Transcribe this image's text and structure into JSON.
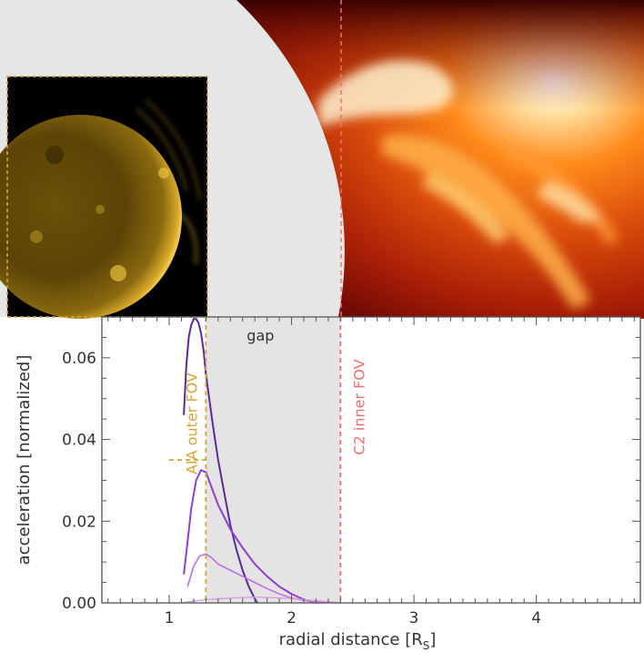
{
  "colors": {
    "gap_fill": "#e4e4e4",
    "aia_line": "#d8a535",
    "c2_line": "#f07070",
    "curve_dark": "#5a2a9a",
    "curve_mid": "#8f3fd0",
    "curve_light": "#c070e0",
    "curve_faint": "#d89ae8",
    "axis": "#555555"
  },
  "chart_data": {
    "type": "line",
    "xlabel": "radial distance [R",
    "xlabel_sub": "S",
    "xlabel_close": "]",
    "ylabel": "acceleration [normalized]",
    "xlim": [
      0.45,
      4.85
    ],
    "ylim": [
      0,
      0.07
    ],
    "xticks": [
      1,
      2,
      3,
      4
    ],
    "xtick_labels": [
      "1",
      "2",
      "3",
      "4"
    ],
    "yticks": [
      0,
      0.02,
      0.04,
      0.06
    ],
    "ytick_labels": [
      "0.00",
      "0.02",
      "0.04",
      "0.06"
    ],
    "gap": {
      "x0": 1.3,
      "x1": 2.4,
      "label": "gap"
    },
    "aia_outer_fov": {
      "x": 1.3,
      "label": "AIA outer FOV",
      "ref_y": 0.035,
      "ref_x0": 1.0
    },
    "c2_inner_fov": {
      "x": 2.4,
      "label": "C2 inner FOV"
    },
    "series": [
      {
        "x": [
          1.12,
          1.14,
          1.16,
          1.18,
          1.2,
          1.22,
          1.24,
          1.26,
          1.28,
          1.3,
          1.35,
          1.4,
          1.45,
          1.5,
          1.55,
          1.6,
          1.65,
          1.7,
          1.72
        ],
        "y": [
          0.046,
          0.058,
          0.065,
          0.068,
          0.0695,
          0.0695,
          0.0685,
          0.066,
          0.062,
          0.056,
          0.045,
          0.035,
          0.027,
          0.019,
          0.013,
          0.008,
          0.004,
          0.001,
          0.0
        ]
      },
      {
        "x": [
          1.12,
          1.15,
          1.18,
          1.22,
          1.26,
          1.3,
          1.35,
          1.4,
          1.5,
          1.6,
          1.7,
          1.8,
          1.9,
          2.0,
          2.1,
          2.2
        ],
        "y": [
          0.007,
          0.015,
          0.023,
          0.03,
          0.0325,
          0.032,
          0.028,
          0.024,
          0.018,
          0.0135,
          0.0095,
          0.0065,
          0.004,
          0.0022,
          0.0008,
          0.0
        ]
      },
      {
        "x": [
          1.15,
          1.2,
          1.25,
          1.3,
          1.35,
          1.4,
          1.5,
          1.6,
          1.7,
          1.8,
          1.9,
          2.0,
          2.1,
          2.2,
          2.3
        ],
        "y": [
          0.004,
          0.009,
          0.0115,
          0.012,
          0.011,
          0.0095,
          0.008,
          0.0065,
          0.005,
          0.0035,
          0.0022,
          0.0012,
          0.0006,
          0.0002,
          0.0
        ]
      },
      {
        "x": [
          1.1,
          1.3,
          1.5,
          1.7,
          1.9,
          2.1,
          2.3,
          2.4
        ],
        "y": [
          0.0,
          0.0008,
          0.0012,
          0.0014,
          0.0012,
          0.0008,
          0.0003,
          0.0
        ]
      }
    ]
  }
}
